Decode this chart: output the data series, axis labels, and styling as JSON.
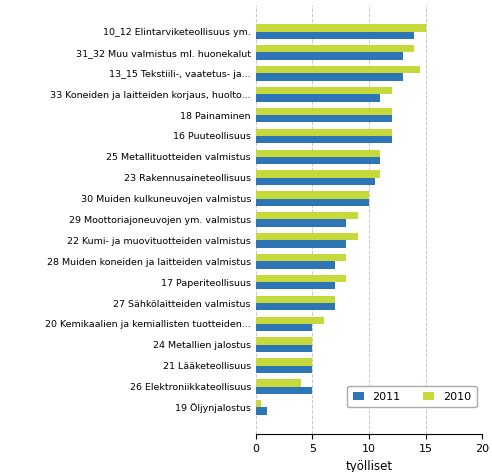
{
  "categories": [
    "10_12 Elintarviketeollisuus ym.",
    "31_32 Muu valmistus ml. huonekalut",
    "13_15 Tekstiili-, vaatetus- ja...",
    "33 Koneiden ja laitteiden korjaus, huolto...",
    "18 Painaminen",
    "16 Puuteollisuus",
    "25 Metallituotteiden valmistus",
    "23 Rakennusaineteollisuus",
    "30 Muiden kulkuneuvojen valmistus",
    "29 Moottoriajoneuvojen ym. valmistus",
    "22 Kumi- ja muovituotteiden valmistus",
    "28 Muiden koneiden ja laitteiden valmistus",
    "17 Paperiteollisuus",
    "27 Sähkölaitteiden valmistus",
    "20 Kemikaalien ja kemiallisten tuotteiden...",
    "24 Metallien jalostus",
    "21 Lääketeollisuus",
    "26 Elektroniikkateollisuus",
    "19 Öljynjalostus"
  ],
  "values_2011": [
    14.0,
    13.0,
    13.0,
    11.0,
    12.0,
    12.0,
    11.0,
    10.5,
    10.0,
    8.0,
    8.0,
    7.0,
    7.0,
    7.0,
    5.0,
    5.0,
    5.0,
    5.0,
    1.0
  ],
  "values_2010": [
    15.0,
    14.0,
    14.5,
    12.0,
    12.0,
    12.0,
    11.0,
    11.0,
    10.0,
    9.0,
    9.0,
    8.0,
    8.0,
    7.0,
    6.0,
    5.0,
    5.0,
    4.0,
    0.5
  ],
  "color_2011": "#2E75B6",
  "color_2010": "#C6D93A",
  "xlabel": "työlliset",
  "xlim": [
    0,
    20
  ],
  "xticks": [
    0,
    5,
    10,
    15,
    20
  ],
  "legend_labels": [
    "2011",
    "2010"
  ],
  "bar_height": 0.35,
  "grid_color": "#c8c8c8",
  "background_color": "#ffffff"
}
